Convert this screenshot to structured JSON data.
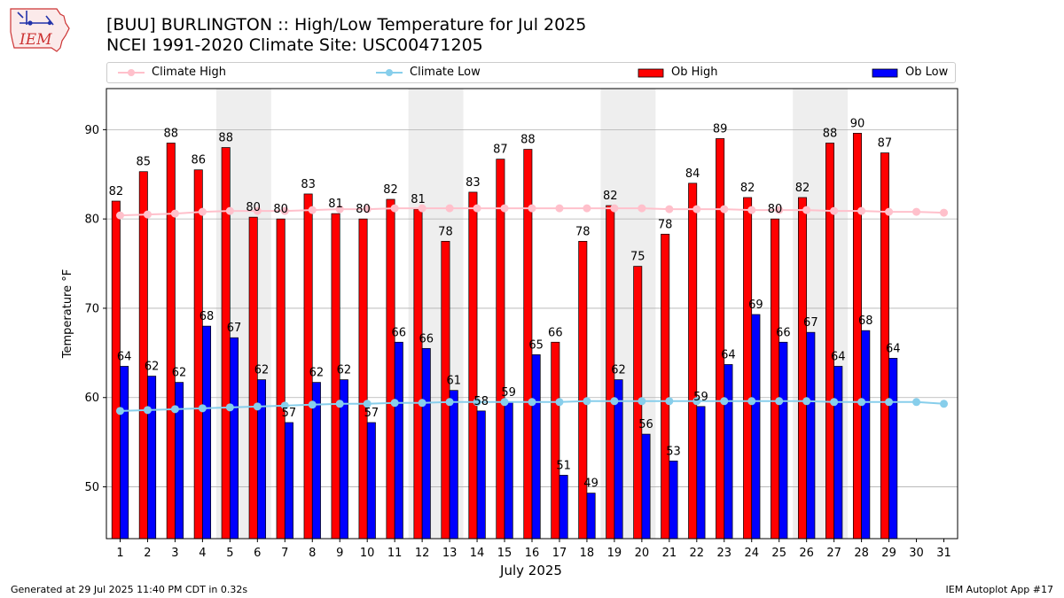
{
  "header": {
    "title_line1": "[BUU] BURLINGTON :: High/Low Temperature for Jul 2025",
    "title_line2": "NCEI 1991-2020 Climate Site: USC00471205",
    "logo_text": "IEM"
  },
  "footer": {
    "left": "Generated at 29 Jul 2025 11:40 PM CDT in 0.32s",
    "right": "IEM Autoplot App #17"
  },
  "colors": {
    "ob_high": "#ff0000",
    "ob_low": "#0000ff",
    "climate_high": "#ffc0cb",
    "climate_low": "#87ceeb",
    "weekend_shade": "#eeeeee",
    "grid": "#b0b0b0"
  },
  "chart_data": {
    "type": "bar",
    "title": "[BUU] BURLINGTON :: High/Low Temperature for Jul 2025",
    "subtitle": "NCEI 1991-2020 Climate Site: USC00471205",
    "xlabel": "July 2025",
    "ylabel": "Temperature °F",
    "ylim": [
      44.2,
      94.6
    ],
    "xlim": [
      0.5,
      31.5
    ],
    "yticks": [
      50,
      60,
      70,
      80,
      90
    ],
    "categories": [
      "1",
      "2",
      "3",
      "4",
      "5",
      "6",
      "7",
      "8",
      "9",
      "10",
      "11",
      "12",
      "13",
      "14",
      "15",
      "16",
      "17",
      "18",
      "19",
      "20",
      "21",
      "22",
      "23",
      "24",
      "25",
      "26",
      "27",
      "28",
      "29",
      "30",
      "31"
    ],
    "grid": "y",
    "legend_position": "top",
    "shaded_weekend_days": [
      [
        5,
        6
      ],
      [
        12,
        13
      ],
      [
        19,
        20
      ],
      [
        26,
        27
      ]
    ],
    "series": [
      {
        "name": "Climate High",
        "kind": "line",
        "values": [
          80.4,
          80.5,
          80.6,
          80.8,
          80.9,
          80.9,
          80.9,
          81.0,
          81.1,
          81.1,
          81.2,
          81.2,
          81.2,
          81.2,
          81.2,
          81.2,
          81.2,
          81.2,
          81.2,
          81.2,
          81.1,
          81.1,
          81.1,
          81.0,
          81.0,
          81.0,
          80.9,
          80.9,
          80.8,
          80.8,
          80.7
        ]
      },
      {
        "name": "Climate Low",
        "kind": "line",
        "values": [
          58.5,
          58.6,
          58.7,
          58.8,
          58.9,
          59.0,
          59.1,
          59.2,
          59.3,
          59.3,
          59.4,
          59.4,
          59.5,
          59.5,
          59.5,
          59.5,
          59.5,
          59.6,
          59.6,
          59.6,
          59.6,
          59.6,
          59.6,
          59.6,
          59.6,
          59.6,
          59.5,
          59.5,
          59.5,
          59.5,
          59.3
        ]
      },
      {
        "name": "Ob High",
        "kind": "bar",
        "values": [
          82,
          85,
          88,
          86,
          88,
          80,
          80,
          83,
          81,
          80,
          82,
          81,
          78,
          83,
          87,
          88,
          66,
          78,
          82,
          75,
          78,
          84,
          89,
          82,
          80,
          82,
          88,
          90,
          87,
          null,
          null
        ],
        "bar_heights": [
          82.0,
          85.3,
          88.5,
          85.5,
          88.0,
          80.2,
          80.0,
          82.8,
          80.6,
          80.0,
          82.2,
          81.1,
          77.5,
          83.0,
          86.7,
          87.8,
          66.2,
          77.5,
          81.5,
          74.7,
          78.3,
          84.0,
          89.0,
          82.4,
          80.0,
          82.4,
          88.5,
          89.6,
          87.4,
          null,
          null
        ]
      },
      {
        "name": "Ob Low",
        "kind": "bar",
        "values": [
          64,
          62,
          62,
          68,
          67,
          62,
          57,
          62,
          62,
          57,
          66,
          66,
          61,
          58,
          59,
          65,
          51,
          49,
          62,
          56,
          53,
          59,
          64,
          69,
          66,
          67,
          64,
          68,
          64,
          null,
          null
        ],
        "bar_heights": [
          63.5,
          62.4,
          61.7,
          68.0,
          66.7,
          62.0,
          57.2,
          61.7,
          62.0,
          57.2,
          66.2,
          65.5,
          60.8,
          58.5,
          59.5,
          64.8,
          51.3,
          49.3,
          62.0,
          55.9,
          52.9,
          59.0,
          63.7,
          69.3,
          66.2,
          67.3,
          63.5,
          67.5,
          64.4,
          null,
          null
        ]
      }
    ]
  }
}
